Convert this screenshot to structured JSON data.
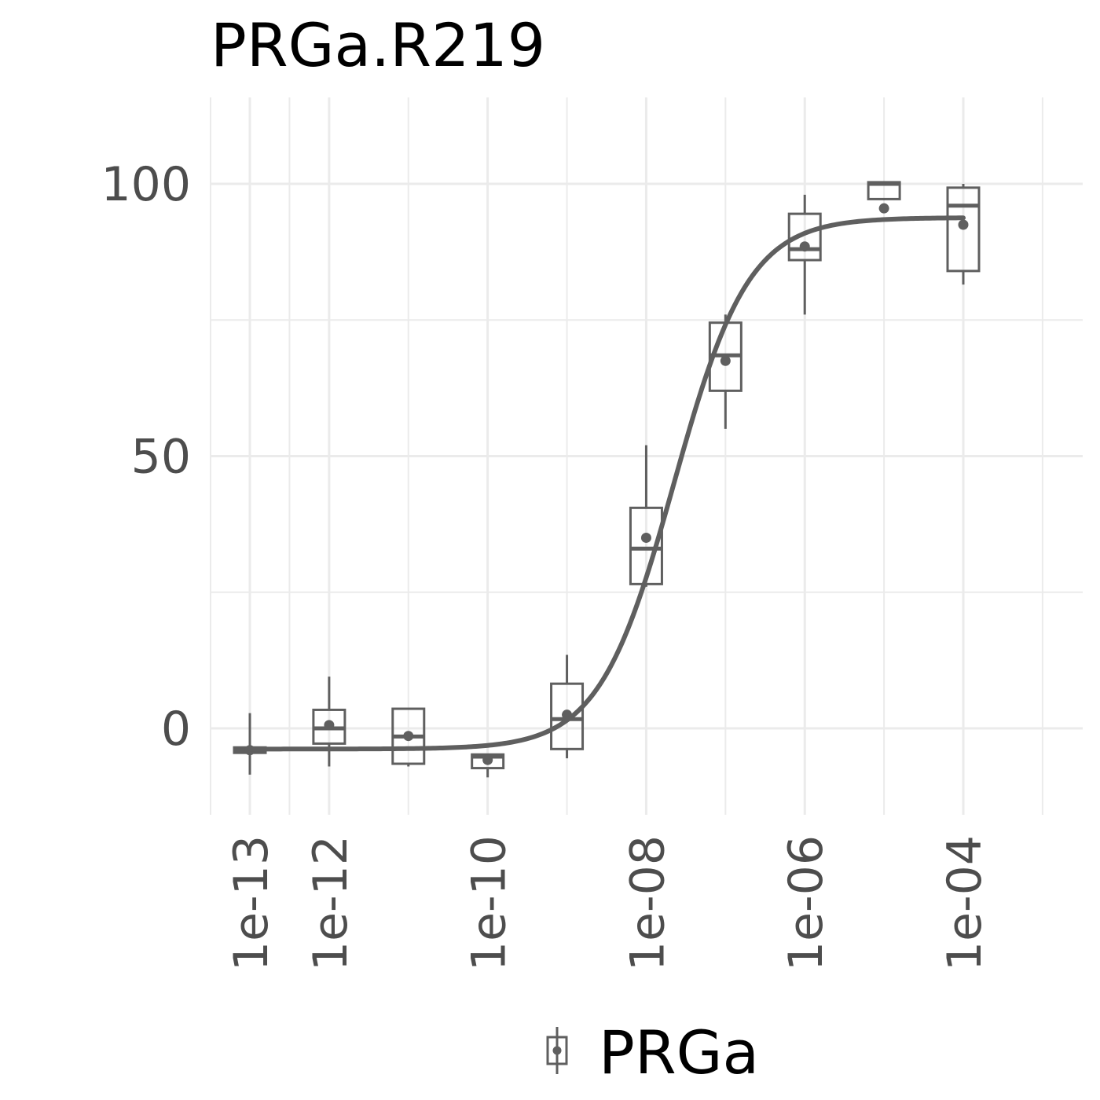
{
  "chart_data": {
    "type": "box",
    "title": "PRGa.R219",
    "xlabel": "",
    "ylabel": "",
    "x_scale": "log10",
    "xlim": [
      5e-14,
      0.005
    ],
    "ylim": [
      -16,
      117
    ],
    "x_ticks": [
      {
        "value": 1e-13,
        "label": "1e-13"
      },
      {
        "value": 1e-12,
        "label": "1e-12"
      },
      {
        "value": 1e-10,
        "label": "1e-10"
      },
      {
        "value": 1e-08,
        "label": "1e-08"
      },
      {
        "value": 1e-06,
        "label": "1e-06"
      },
      {
        "value": 0.0001,
        "label": "1e-04"
      }
    ],
    "x_minor_grid": [
      1e-11,
      1e-09,
      1e-07,
      1e-05,
      0.001
    ],
    "x_extra_grid": [
      3.16e-13
    ],
    "y_ticks": [
      {
        "value": 0,
        "label": "0"
      },
      {
        "value": 50,
        "label": "50"
      },
      {
        "value": 100,
        "label": "100"
      }
    ],
    "y_minor_grid": [
      25,
      75
    ],
    "grid": true,
    "legend": {
      "position": "bottom",
      "entries": [
        {
          "name": "PRGa",
          "color": "#5f5f5f"
        }
      ]
    },
    "color": "#5f5f5f",
    "series": [
      {
        "name": "PRGa",
        "boxes": [
          {
            "x": 1e-13,
            "lower_whisker": -8.5,
            "q1": -4.5,
            "median": -4,
            "q3": -3.5,
            "upper_whisker": 2.8,
            "mean": -4.0
          },
          {
            "x": 1e-12,
            "lower_whisker": -7,
            "q1": -2.8,
            "median": 0,
            "q3": 3.4,
            "upper_whisker": 9.5,
            "mean": 0.6
          },
          {
            "x": 1e-11,
            "lower_whisker": -7,
            "q1": -6.5,
            "median": -1.5,
            "q3": 3.6,
            "upper_whisker": 3.6,
            "mean": -1.4
          },
          {
            "x": 1e-10,
            "lower_whisker": -9,
            "q1": -7.3,
            "median": -5.2,
            "q3": -4.8,
            "upper_whisker": -4.8,
            "mean": -5.8
          },
          {
            "x": 1e-09,
            "lower_whisker": -5.5,
            "q1": -3.8,
            "median": 1.7,
            "q3": 8.2,
            "upper_whisker": 13.5,
            "mean": 2.5
          },
          {
            "x": 1e-08,
            "lower_whisker": 26,
            "q1": 26.5,
            "median": 33,
            "q3": 40.5,
            "upper_whisker": 52,
            "mean": 35.0
          },
          {
            "x": 1e-07,
            "lower_whisker": 55,
            "q1": 62,
            "median": 68.5,
            "q3": 74.5,
            "upper_whisker": 76,
            "mean": 67.5
          },
          {
            "x": 1e-06,
            "lower_whisker": 76,
            "q1": 86,
            "median": 88,
            "q3": 94.5,
            "upper_whisker": 98,
            "mean": 88.5
          },
          {
            "x": 1e-05,
            "lower_whisker": 97,
            "q1": 97.2,
            "median": 100,
            "q3": 100.3,
            "upper_whisker": 100.3,
            "mean": 95.5
          },
          {
            "x": 0.0001,
            "lower_whisker": 81.5,
            "q1": 84,
            "median": 96,
            "q3": 99.3,
            "upper_whisker": 100,
            "mean": 92.5
          }
        ],
        "fit_curve": {
          "bottom": -3.8,
          "top": 93.8,
          "log_ec50": -7.65,
          "hill_slope": 0.92,
          "x_range": [
            1e-13,
            0.0001
          ]
        }
      }
    ]
  }
}
